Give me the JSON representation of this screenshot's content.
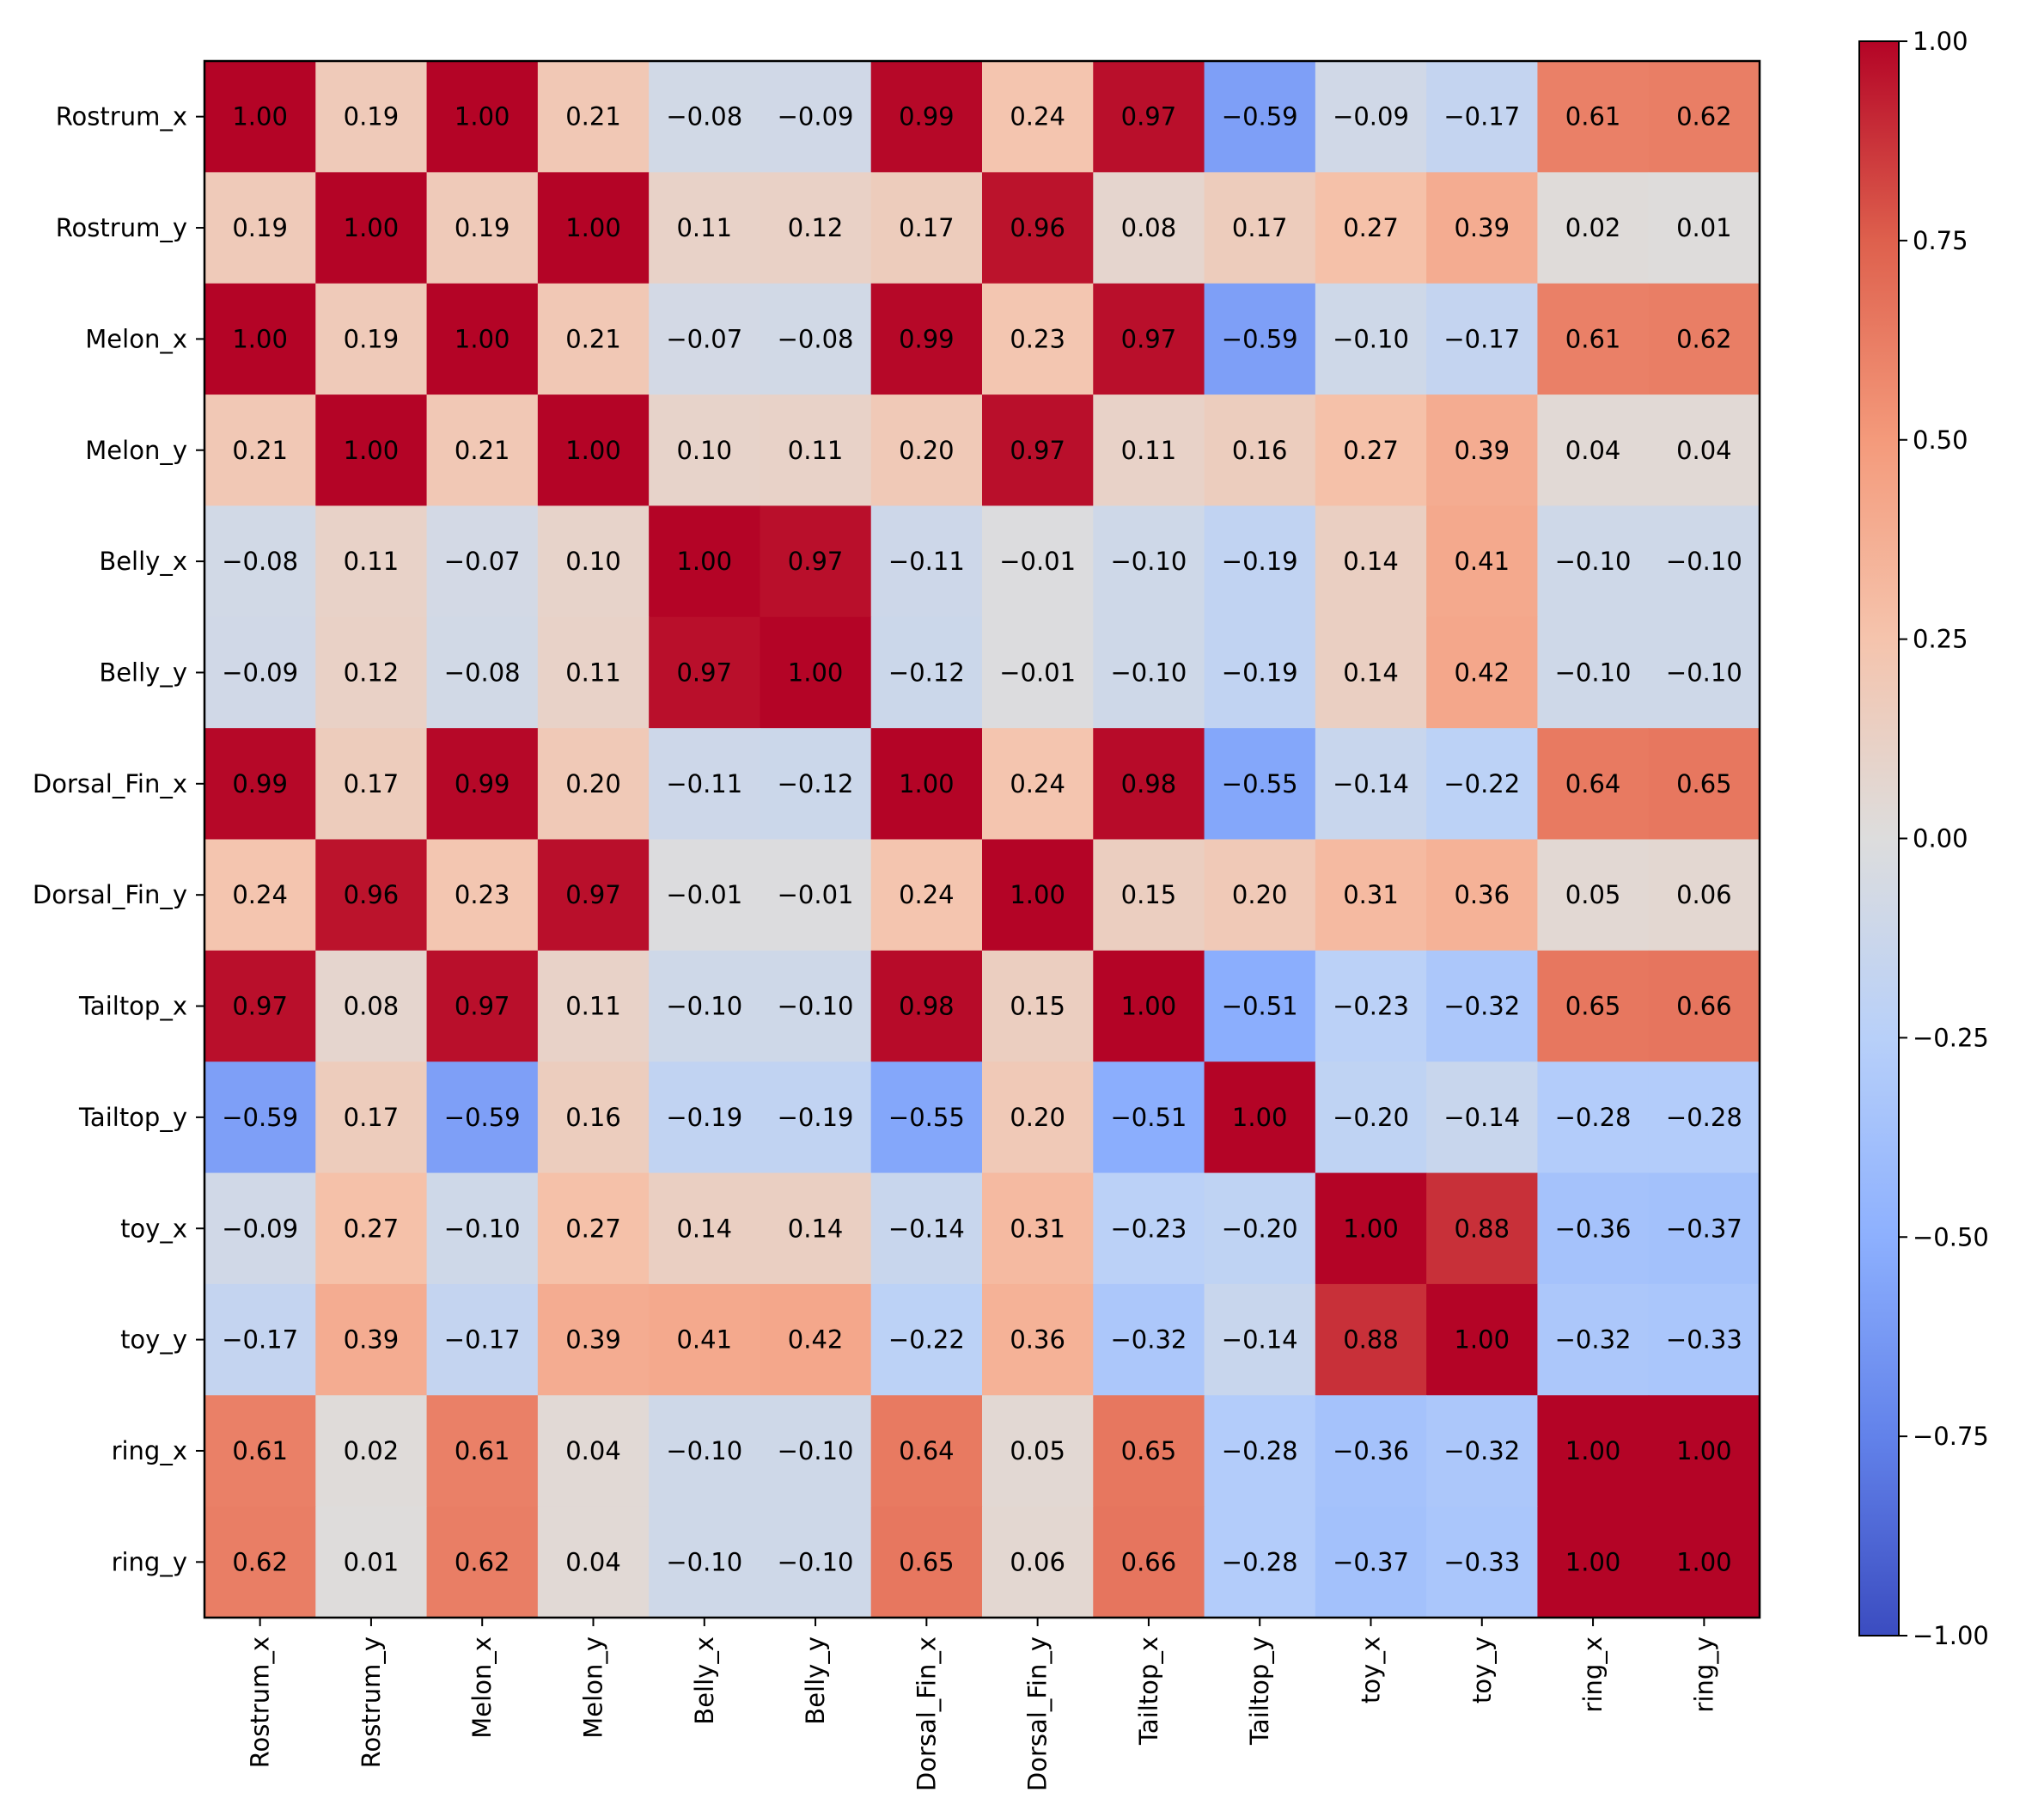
{
  "chart_data": {
    "type": "heatmap",
    "title": "",
    "xlabel": "",
    "ylabel": "",
    "rows": [
      "Rostrum_x",
      "Rostrum_y",
      "Melon_x",
      "Melon_y",
      "Belly_x",
      "Belly_y",
      "Dorsal_Fin_x",
      "Dorsal_Fin_y",
      "Tailtop_x",
      "Tailtop_y",
      "toy_x",
      "toy_y",
      "ring_x",
      "ring_y"
    ],
    "columns": [
      "Rostrum_x",
      "Rostrum_y",
      "Melon_x",
      "Melon_y",
      "Belly_x",
      "Belly_y",
      "Dorsal_Fin_x",
      "Dorsal_Fin_y",
      "Tailtop_x",
      "Tailtop_y",
      "toy_x",
      "toy_y",
      "ring_x",
      "ring_y"
    ],
    "values": [
      [
        1.0,
        0.19,
        1.0,
        0.21,
        -0.08,
        -0.09,
        0.99,
        0.24,
        0.97,
        -0.59,
        -0.09,
        -0.17,
        0.61,
        0.62
      ],
      [
        0.19,
        1.0,
        0.19,
        1.0,
        0.11,
        0.12,
        0.17,
        0.96,
        0.08,
        0.17,
        0.27,
        0.39,
        0.02,
        0.01
      ],
      [
        1.0,
        0.19,
        1.0,
        0.21,
        -0.07,
        -0.08,
        0.99,
        0.23,
        0.97,
        -0.59,
        -0.1,
        -0.17,
        0.61,
        0.62
      ],
      [
        0.21,
        1.0,
        0.21,
        1.0,
        0.1,
        0.11,
        0.2,
        0.97,
        0.11,
        0.16,
        0.27,
        0.39,
        0.04,
        0.04
      ],
      [
        -0.08,
        0.11,
        -0.07,
        0.1,
        1.0,
        0.97,
        -0.11,
        -0.01,
        -0.1,
        -0.19,
        0.14,
        0.41,
        -0.1,
        -0.1
      ],
      [
        -0.09,
        0.12,
        -0.08,
        0.11,
        0.97,
        1.0,
        -0.12,
        -0.01,
        -0.1,
        -0.19,
        0.14,
        0.42,
        -0.1,
        -0.1
      ],
      [
        0.99,
        0.17,
        0.99,
        0.2,
        -0.11,
        -0.12,
        1.0,
        0.24,
        0.98,
        -0.55,
        -0.14,
        -0.22,
        0.64,
        0.65
      ],
      [
        0.24,
        0.96,
        0.23,
        0.97,
        -0.01,
        -0.01,
        0.24,
        1.0,
        0.15,
        0.2,
        0.31,
        0.36,
        0.05,
        0.06
      ],
      [
        0.97,
        0.08,
        0.97,
        0.11,
        -0.1,
        -0.1,
        0.98,
        0.15,
        1.0,
        -0.51,
        -0.23,
        -0.32,
        0.65,
        0.66
      ],
      [
        -0.59,
        0.17,
        -0.59,
        0.16,
        -0.19,
        -0.19,
        -0.55,
        0.2,
        -0.51,
        1.0,
        -0.2,
        -0.14,
        -0.28,
        -0.28
      ],
      [
        -0.09,
        0.27,
        -0.1,
        0.27,
        0.14,
        0.14,
        -0.14,
        0.31,
        -0.23,
        -0.2,
        1.0,
        0.88,
        -0.36,
        -0.37
      ],
      [
        -0.17,
        0.39,
        -0.17,
        0.39,
        0.41,
        0.42,
        -0.22,
        0.36,
        -0.32,
        -0.14,
        0.88,
        1.0,
        -0.32,
        -0.33
      ],
      [
        0.61,
        0.02,
        0.61,
        0.04,
        -0.1,
        -0.1,
        0.64,
        0.05,
        0.65,
        -0.28,
        -0.36,
        -0.32,
        1.0,
        1.0
      ],
      [
        0.62,
        0.01,
        0.62,
        0.04,
        -0.1,
        -0.1,
        0.65,
        0.06,
        0.66,
        -0.28,
        -0.37,
        -0.33,
        1.0,
        1.0
      ]
    ],
    "value_format": "2 decimals, unicode minus",
    "colormap": "coolwarm",
    "color_range": [
      -1.0,
      1.0
    ],
    "colorbar": {
      "position": "right",
      "ticks": [
        1.0,
        0.75,
        0.5,
        0.25,
        0.0,
        -0.25,
        -0.5,
        -0.75,
        -1.0
      ],
      "tick_labels": [
        "1.00",
        "0.75",
        "0.50",
        "0.25",
        "0.00",
        "−0.25",
        "−0.50",
        "−0.75",
        "−1.00"
      ]
    },
    "grid": false
  }
}
